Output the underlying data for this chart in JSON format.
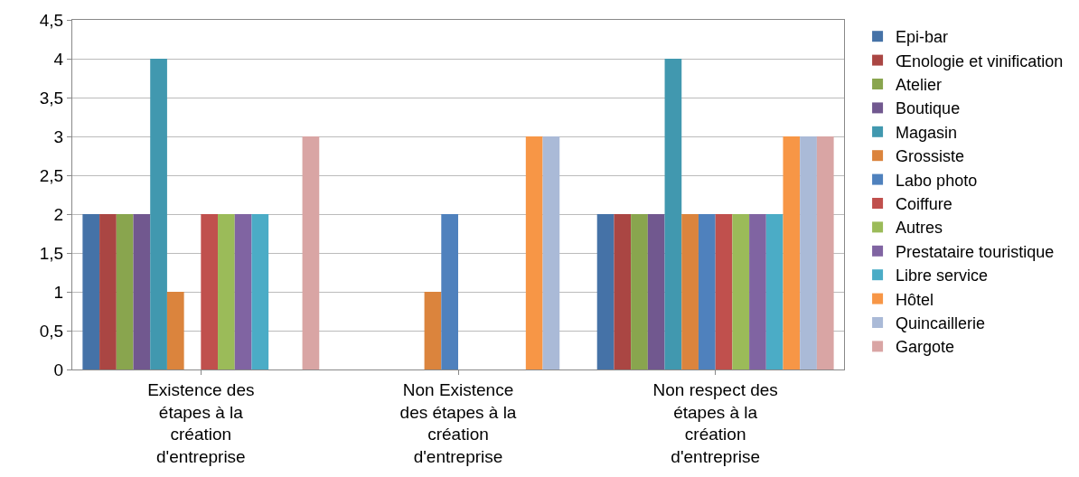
{
  "chart_data": {
    "type": "bar",
    "categories": [
      "Existence des étapes à la création d'entreprise",
      "Non Existence des étapes à la création d'entreprise",
      "Non respect des étapes à la création d'entreprise"
    ],
    "series": [
      {
        "name": "Epi-bar",
        "color": "#4572a7",
        "values": [
          2,
          0,
          2
        ]
      },
      {
        "name": "Œnologie et vinification",
        "color": "#aa4643",
        "values": [
          2,
          0,
          2
        ]
      },
      {
        "name": "Atelier",
        "color": "#89a54e",
        "values": [
          2,
          0,
          2
        ]
      },
      {
        "name": "Boutique",
        "color": "#71588f",
        "values": [
          2,
          0,
          2
        ]
      },
      {
        "name": "Magasin",
        "color": "#4198af",
        "values": [
          4,
          0,
          4
        ]
      },
      {
        "name": "Grossiste",
        "color": "#db843d",
        "values": [
          1,
          1,
          2
        ]
      },
      {
        "name": "Labo photo",
        "color": "#4f81bd",
        "values": [
          0,
          2,
          2
        ]
      },
      {
        "name": "Coiffure",
        "color": "#c0504d",
        "values": [
          2,
          0,
          2
        ]
      },
      {
        "name": "Autres",
        "color": "#9bbb59",
        "values": [
          2,
          0,
          2
        ]
      },
      {
        "name": "Prestataire touristique",
        "color": "#8064a2",
        "values": [
          2,
          0,
          2
        ]
      },
      {
        "name": "Libre service",
        "color": "#4bacc6",
        "values": [
          2,
          0,
          2
        ]
      },
      {
        "name": "Hôtel",
        "color": "#f79646",
        "values": [
          0,
          3,
          3
        ]
      },
      {
        "name": "Quincaillerie",
        "color": "#aabad7",
        "values": [
          0,
          3,
          3
        ]
      },
      {
        "name": "Gargote",
        "color": "#d9a5a4",
        "values": [
          3,
          0,
          3
        ]
      }
    ],
    "ylim": [
      0,
      4.5
    ],
    "yticks": [
      0,
      {
        "value": 0.5,
        "label": "0,5"
      },
      1,
      {
        "value": 1.5,
        "label": "1,5"
      },
      2,
      {
        "value": 2.5,
        "label": "2,5"
      },
      3,
      {
        "value": 3.5,
        "label": "3,5"
      },
      4,
      {
        "value": 4.5,
        "label": "4,5"
      }
    ],
    "grid": "y",
    "legend": "right"
  }
}
